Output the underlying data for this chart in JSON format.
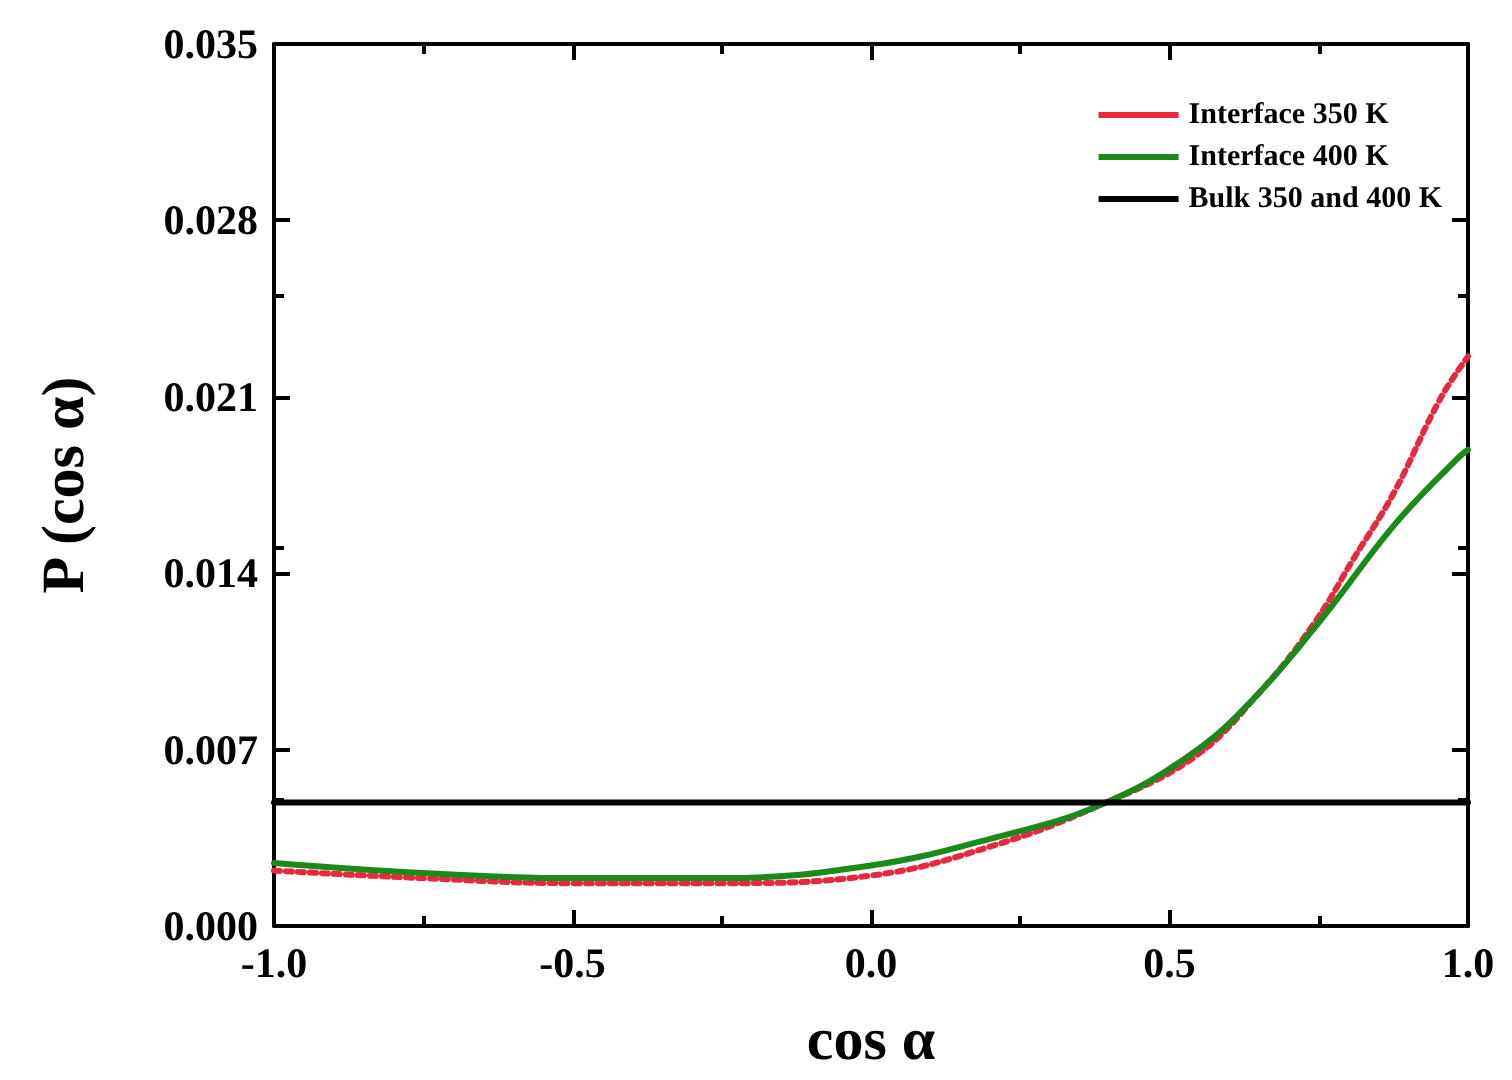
{
  "chart_data": {
    "type": "line",
    "xlabel": "cos α",
    "ylabel": "P (cos α)",
    "xlim": [
      -1,
      1
    ],
    "xticks": [
      {
        "value": -1,
        "label": "-1.0"
      },
      {
        "value": -0.5,
        "label": "-0.5"
      },
      {
        "value": 0,
        "label": "0.0"
      },
      {
        "value": 0.5,
        "label": "0.5"
      },
      {
        "value": 1,
        "label": "1.0"
      }
    ],
    "ylim": [
      0,
      0.035
    ],
    "yticks": [
      {
        "value": 0,
        "label": "0.000"
      },
      {
        "value": 0.007,
        "label": "0.007"
      },
      {
        "value": 0.014,
        "label": "0.014"
      },
      {
        "value": 0.021,
        "label": "0.021"
      },
      {
        "value": 0.028,
        "label": "0.028"
      },
      {
        "value": 0.035,
        "label": "0.035"
      }
    ],
    "grid": false,
    "legend": "top right",
    "marker": "none",
    "series": [
      {
        "name": "Interface 350 K",
        "color": "#e8283c",
        "line_style": "dotted",
        "x": [
          -1,
          -0.75,
          -0.5,
          -0.25,
          0,
          0.206,
          0.384,
          0.541,
          0.652,
          0.742,
          0.809,
          0.876,
          0.953,
          1
        ],
        "values": [
          0.0022,
          0.0019,
          0.0017,
          0.0017,
          0.002,
          0.0032,
          0.0048,
          0.0067,
          0.0093,
          0.012,
          0.0146,
          0.0172,
          0.0209,
          0.0226
        ]
      },
      {
        "name": "Interface 400 K",
        "color": "#1a8a1a",
        "line_style": "solid",
        "x": [
          -1,
          -0.75,
          -0.5,
          -0.25,
          0,
          0.206,
          0.384,
          0.541,
          0.652,
          0.762,
          0.876,
          0.98,
          1
        ],
        "values": [
          0.0025,
          0.0021,
          0.0019,
          0.0019,
          0.0024,
          0.0035,
          0.0048,
          0.0069,
          0.0093,
          0.0124,
          0.0159,
          0.0185,
          0.0189
        ]
      },
      {
        "name": "Bulk 350 and 400 K",
        "color": "#000000",
        "line_style": "solid",
        "x": [
          -1,
          1
        ],
        "values": [
          0.0049,
          0.0049
        ]
      }
    ]
  }
}
